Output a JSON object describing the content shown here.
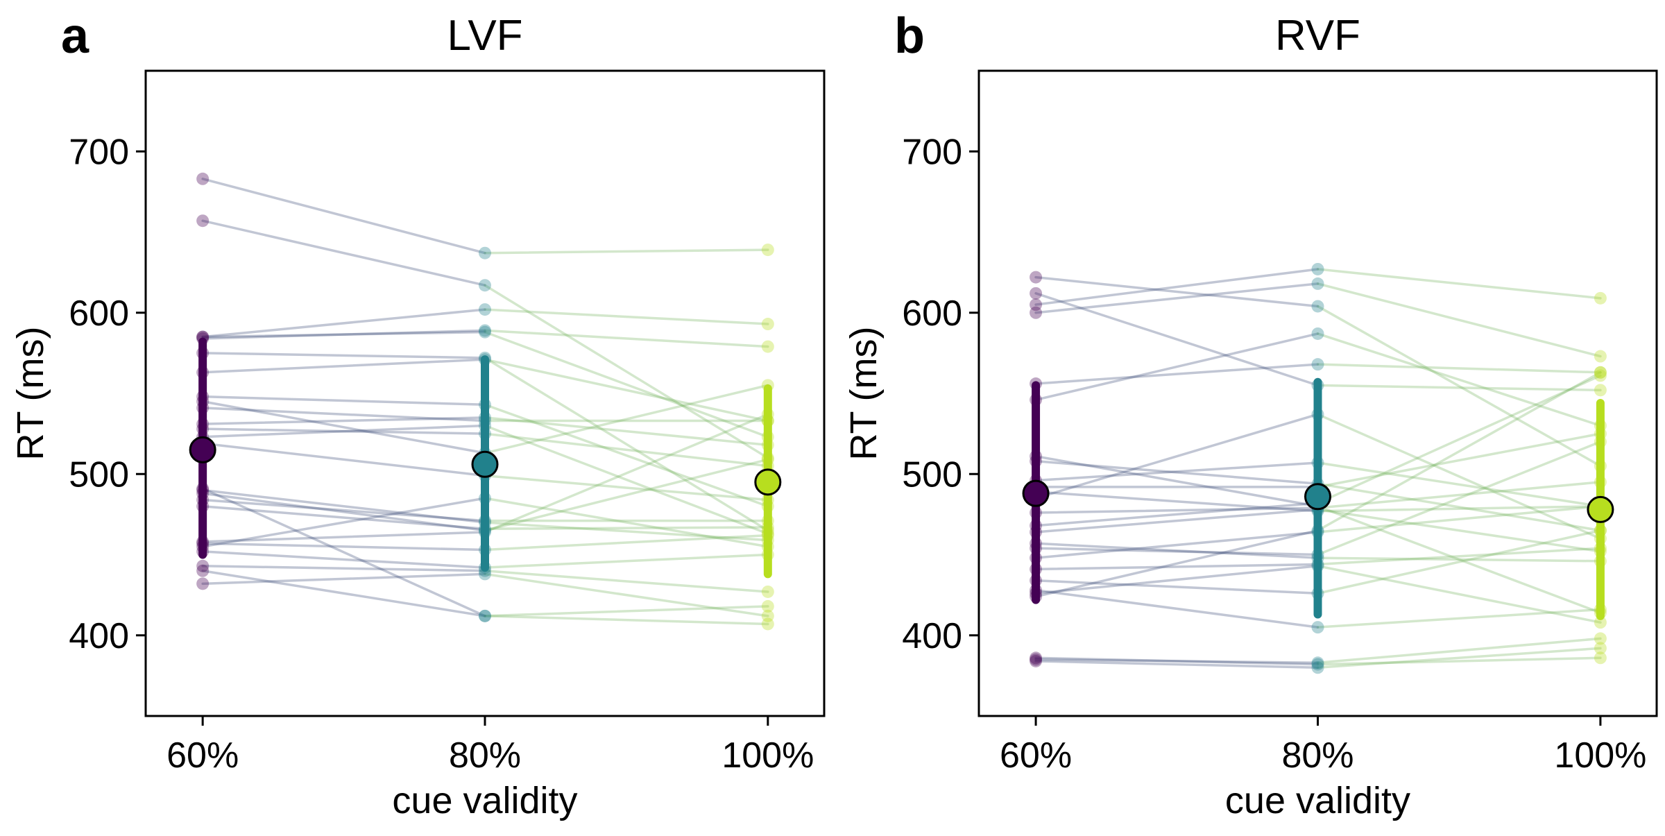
{
  "chart_data": [
    {
      "type": "line",
      "panel_label": "a",
      "title": "LVF",
      "xlabel": "cue validity",
      "ylabel": "RT (ms)",
      "categories": [
        "60%",
        "80%",
        "100%"
      ],
      "ylim": [
        350,
        750
      ],
      "yticks": [
        400,
        500,
        600,
        700
      ],
      "grid": false,
      "colors": [
        "#440154",
        "#21818c",
        "#b7de1f"
      ],
      "subjects": [
        [
          683,
          637,
          639
        ],
        [
          657,
          617,
          510
        ],
        [
          585,
          602,
          593
        ],
        [
          584,
          589,
          579
        ],
        [
          585,
          588,
          523
        ],
        [
          575,
          572,
          465
        ],
        [
          563,
          571,
          533
        ],
        [
          548,
          543,
          480
        ],
        [
          545,
          513,
          555
        ],
        [
          541,
          533,
          533
        ],
        [
          531,
          535,
          518
        ],
        [
          528,
          525,
          505
        ],
        [
          523,
          530,
          463
        ],
        [
          519,
          499,
          484
        ],
        [
          490,
          470,
          459
        ],
        [
          488,
          465,
          509
        ],
        [
          484,
          471,
          471
        ],
        [
          480,
          466,
          467
        ],
        [
          458,
          464,
          537
        ],
        [
          457,
          453,
          462
        ],
        [
          455,
          485,
          455
        ],
        [
          452,
          442,
          450
        ],
        [
          443,
          440,
          427
        ],
        [
          440,
          412,
          418
        ],
        [
          432,
          438,
          412
        ],
        [
          491,
          412,
          407
        ]
      ],
      "means": [
        515,
        506,
        495
      ],
      "error_bars": [
        [
          450,
          582
        ],
        [
          442,
          571
        ],
        [
          438,
          553
        ]
      ]
    },
    {
      "type": "line",
      "panel_label": "b",
      "title": "RVF",
      "xlabel": "cue validity",
      "ylabel": "RT (ms)",
      "categories": [
        "60%",
        "80%",
        "100%"
      ],
      "ylim": [
        350,
        750
      ],
      "yticks": [
        400,
        500,
        600,
        700
      ],
      "grid": false,
      "colors": [
        "#440154",
        "#21818c",
        "#b7de1f"
      ],
      "subjects": [
        [
          622,
          604,
          505
        ],
        [
          612,
          555,
          552
        ],
        [
          605,
          627,
          609
        ],
        [
          600,
          618,
          573
        ],
        [
          556,
          568,
          563
        ],
        [
          546,
          587,
          530
        ],
        [
          511,
          480,
          414
        ],
        [
          508,
          494,
          465
        ],
        [
          496,
          507,
          480
        ],
        [
          492,
          492,
          525
        ],
        [
          489,
          477,
          480
        ],
        [
          485,
          537,
          460
        ],
        [
          476,
          479,
          495
        ],
        [
          468,
          482,
          561
        ],
        [
          464,
          478,
          452
        ],
        [
          457,
          448,
          446
        ],
        [
          454,
          450,
          520
        ],
        [
          448,
          464,
          480
        ],
        [
          441,
          444,
          454
        ],
        [
          434,
          426,
          465
        ],
        [
          428,
          405,
          416
        ],
        [
          426,
          443,
          408
        ],
        [
          424,
          465,
          563
        ],
        [
          385,
          383,
          398
        ],
        [
          386,
          382,
          386
        ],
        [
          384,
          380,
          392
        ]
      ],
      "means": [
        488,
        486,
        478
      ],
      "error_bars": [
        [
          422,
          555
        ],
        [
          413,
          557
        ],
        [
          412,
          544
        ]
      ]
    }
  ]
}
